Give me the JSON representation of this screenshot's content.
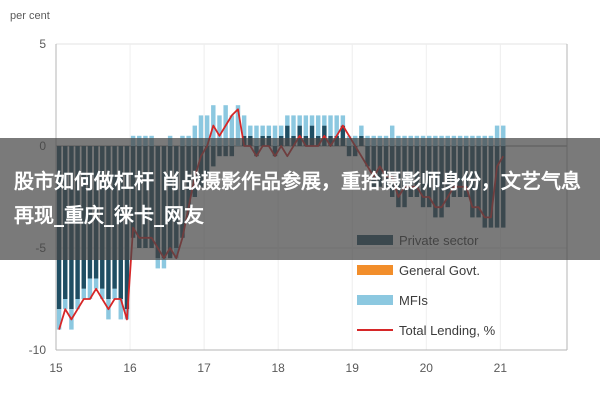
{
  "overlay": {
    "title": "股市如何做杠杆 肖战摄影作品参展，重拾摄影师身份，文艺气息再现_重庆_徕卡_网友",
    "background": "#464646"
  },
  "chart_data": {
    "type": "bar",
    "unit_label": "per cent",
    "ylim": [
      -10,
      5
    ],
    "yticks": [
      5,
      0,
      -5,
      -10
    ],
    "xticks": [
      "15",
      "16",
      "17",
      "18",
      "19",
      "20",
      "21"
    ],
    "grid": true,
    "legend_position": "bottom-right",
    "x_start": 2015.0,
    "x_step": 0.0833,
    "series": [
      {
        "name": "Private sector",
        "kind": "bar",
        "color": "#1f4e63",
        "values": [
          -8.0,
          -7.5,
          -8.0,
          -7.5,
          -7.0,
          -6.5,
          -6.5,
          -7.0,
          -7.5,
          -7.0,
          -7.5,
          -8.0,
          -4.5,
          -5.0,
          -5.0,
          -5.0,
          -5.5,
          -5.5,
          -5.5,
          -5.0,
          -4.5,
          -3.5,
          -2.5,
          -2.0,
          -1.5,
          -1.0,
          -0.5,
          -0.5,
          -0.5,
          0.0,
          0.5,
          0.5,
          -0.5,
          0.5,
          0.5,
          -0.5,
          0.5,
          1.0,
          0.5,
          1.0,
          0.5,
          1.0,
          0.5,
          1.0,
          0.5,
          0.5,
          1.0,
          -0.5,
          -0.5,
          0.5,
          -1.0,
          -2.0,
          -2.0,
          -2.0,
          -2.5,
          -3.0,
          -3.0,
          -2.5,
          -2.5,
          -3.0,
          -3.0,
          -3.5,
          -3.5,
          -3.0,
          -2.5,
          -2.5,
          -2.5,
          -3.5,
          -3.5,
          -4.0,
          -4.0,
          -4.0,
          -4.0
        ]
      },
      {
        "name": "General Govt.",
        "kind": "bar",
        "color": "#f28e2b",
        "values": [
          0,
          0,
          0,
          0,
          0,
          0,
          0,
          0,
          0,
          0,
          0,
          0,
          0,
          0,
          0,
          0,
          0,
          0,
          0,
          0,
          0,
          0,
          0,
          0,
          0,
          0,
          0,
          0,
          0,
          0,
          0,
          0,
          0,
          0,
          0,
          0,
          0,
          0,
          0,
          0,
          0,
          0,
          0,
          0,
          0,
          0,
          0,
          0,
          0,
          0,
          0,
          0,
          0,
          0,
          0,
          0,
          0,
          0,
          0,
          0,
          0,
          0,
          0,
          0,
          0,
          0,
          0,
          0,
          0,
          0,
          0,
          0,
          0
        ]
      },
      {
        "name": "MFIs",
        "kind": "bar",
        "color": "#8cc8e0",
        "values": [
          -1.0,
          -0.5,
          -1.0,
          -0.5,
          -0.5,
          -1.0,
          -0.5,
          -0.5,
          -1.0,
          -0.5,
          -1.0,
          -0.5,
          0.5,
          0.5,
          0.5,
          0.5,
          -0.5,
          -0.5,
          0.5,
          -0.5,
          0.5,
          0.5,
          1.0,
          1.5,
          1.5,
          2.0,
          1.5,
          2.0,
          1.5,
          2.0,
          1.0,
          0.5,
          1.0,
          0.5,
          0.5,
          1.0,
          0.5,
          0.5,
          1.0,
          0.5,
          1.0,
          0.5,
          1.0,
          0.5,
          1.0,
          1.0,
          0.5,
          0.5,
          0.5,
          0.5,
          0.5,
          0.5,
          0.5,
          0.5,
          1.0,
          0.5,
          0.5,
          0.5,
          0.5,
          0.5,
          0.5,
          0.5,
          0.5,
          0.5,
          0.5,
          0.5,
          0.5,
          0.5,
          0.5,
          0.5,
          0.5,
          1.0,
          1.0
        ]
      },
      {
        "name": "Total Lending, %",
        "kind": "line",
        "color": "#d62728",
        "values": [
          -9.0,
          -8.0,
          -8.5,
          -8.0,
          -7.5,
          -7.5,
          -7.0,
          -7.5,
          -8.0,
          -7.5,
          -7.5,
          -8.5,
          -4.0,
          -4.5,
          -4.5,
          -4.5,
          -5.0,
          -5.5,
          -5.0,
          -5.5,
          -4.5,
          -3.0,
          -1.5,
          -0.5,
          0.0,
          1.0,
          0.5,
          1.0,
          1.5,
          1.8,
          0.0,
          0.0,
          -0.5,
          0.0,
          0.0,
          -0.5,
          0.0,
          -0.5,
          0.0,
          0.5,
          0.0,
          0.0,
          0.0,
          0.5,
          0.0,
          0.5,
          1.0,
          0.5,
          0.0,
          -0.5,
          -1.0,
          -1.5,
          -1.0,
          -1.5,
          -1.5,
          -2.5,
          -2.0,
          -2.0,
          -2.0,
          -2.5,
          -2.5,
          -3.0,
          -3.0,
          -2.5,
          -2.0,
          -2.0,
          -2.0,
          -3.0,
          -3.0,
          -3.5,
          -3.5,
          -1.0,
          -0.5
        ]
      }
    ]
  }
}
